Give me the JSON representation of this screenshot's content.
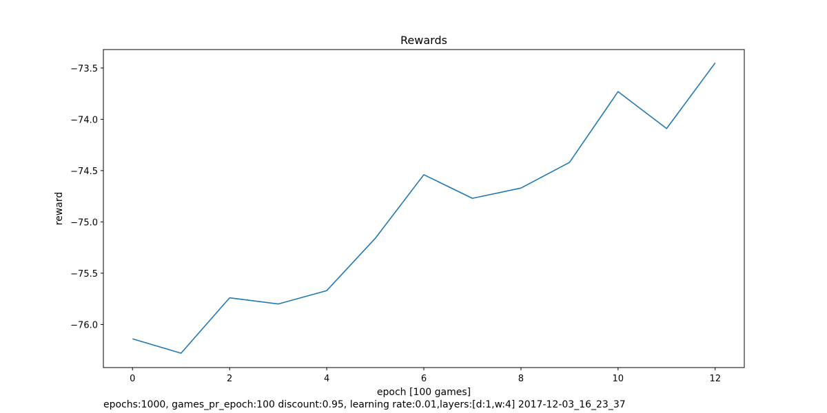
{
  "chart_data": {
    "type": "line",
    "title": "Rewards",
    "xlabel": "epoch [100 games]",
    "ylabel": "reward",
    "x": [
      0,
      1,
      2,
      3,
      4,
      5,
      6,
      7,
      8,
      9,
      10,
      11,
      12
    ],
    "series": [
      {
        "values": [
          -76.14,
          -76.28,
          -75.74,
          -75.8,
          -75.67,
          -75.16,
          -74.54,
          -74.77,
          -74.67,
          -74.42,
          -73.73,
          -74.09,
          -73.45
        ],
        "color": "#1f77b4"
      }
    ],
    "xlim": [
      -0.6,
      12.6
    ],
    "ylim": [
      -76.42,
      -73.32
    ],
    "xticks": [
      0,
      2,
      4,
      6,
      8,
      10,
      12
    ],
    "xtick_labels": [
      "0",
      "2",
      "4",
      "6",
      "8",
      "10",
      "12"
    ],
    "yticks": [
      -73.5,
      -74.0,
      -74.5,
      -75.0,
      -75.5,
      -76.0
    ],
    "ytick_labels": [
      "−73.5",
      "−74.0",
      "−74.5",
      "−75.0",
      "−75.5",
      "−76.0"
    ],
    "grid": false,
    "legend": false
  },
  "caption": "epochs:1000, games_pr_epoch:100 discount:0.95, learning rate:0.01,layers:[d:1,w:4] 2017-12-03_16_23_37"
}
